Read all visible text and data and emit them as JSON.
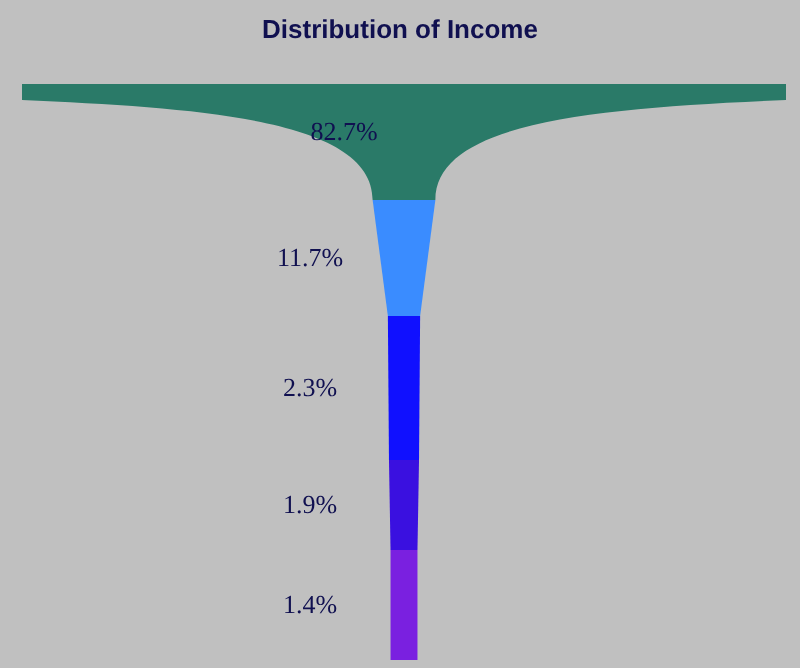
{
  "chart_data": {
    "type": "other",
    "title": "Distribution of Income",
    "categories": [
      null,
      null,
      null,
      null,
      null
    ],
    "values": [
      82.7,
      11.7,
      2.3,
      1.9,
      1.4
    ],
    "value_labels": [
      "82.7%",
      "11.7%",
      "2.3%",
      "1.9%",
      "1.4%"
    ],
    "colors": [
      "#2a7a68",
      "#3a8cff",
      "#1010ff",
      "#3a10e0",
      "#7a20e0"
    ]
  }
}
